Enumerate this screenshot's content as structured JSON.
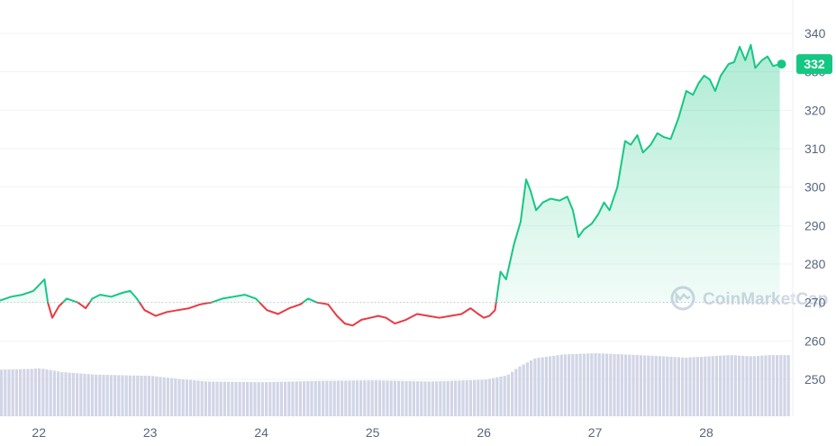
{
  "chart_data": {
    "type": "line",
    "x_ticks": [
      "22",
      "23",
      "24",
      "25",
      "26",
      "27",
      "28"
    ],
    "y_ticks": [
      250,
      260,
      270,
      280,
      290,
      300,
      310,
      320,
      330,
      340
    ],
    "ylim": [
      244,
      344
    ],
    "xlim": [
      21.65,
      28.72
    ],
    "baseline": 270,
    "current_price": "332",
    "watermark": "CoinMarketCap",
    "colors": {
      "up": "#16c784",
      "down": "#ea3943",
      "volume": "#d1d5e6",
      "grid": "#f2f3f5",
      "badge": "#16c784"
    },
    "series": [
      {
        "values": [
          [
            21.65,
            270.5
          ],
          [
            21.75,
            271.5
          ],
          [
            21.85,
            272.0
          ],
          [
            21.95,
            273.0
          ],
          [
            22.05,
            276.0
          ],
          [
            22.08,
            270.0
          ],
          [
            22.12,
            266.0
          ],
          [
            22.18,
            269.0
          ],
          [
            22.25,
            271.0
          ],
          [
            22.35,
            270.0
          ],
          [
            22.42,
            268.5
          ],
          [
            22.48,
            271.0
          ],
          [
            22.55,
            272.0
          ],
          [
            22.65,
            271.5
          ],
          [
            22.75,
            272.5
          ],
          [
            22.82,
            273.0
          ],
          [
            22.88,
            271.0
          ],
          [
            22.95,
            268.0
          ],
          [
            23.05,
            266.5
          ],
          [
            23.15,
            267.5
          ],
          [
            23.25,
            268.0
          ],
          [
            23.35,
            268.5
          ],
          [
            23.45,
            269.5
          ],
          [
            23.55,
            270.0
          ],
          [
            23.65,
            271.0
          ],
          [
            23.75,
            271.5
          ],
          [
            23.85,
            272.0
          ],
          [
            23.95,
            271.0
          ],
          [
            24.05,
            268.0
          ],
          [
            24.15,
            267.0
          ],
          [
            24.25,
            268.5
          ],
          [
            24.35,
            269.5
          ],
          [
            24.42,
            271.0
          ],
          [
            24.5,
            270.0
          ],
          [
            24.6,
            269.5
          ],
          [
            24.68,
            266.5
          ],
          [
            24.75,
            264.5
          ],
          [
            24.82,
            264.0
          ],
          [
            24.9,
            265.5
          ],
          [
            24.98,
            266.0
          ],
          [
            25.05,
            266.5
          ],
          [
            25.12,
            266.0
          ],
          [
            25.2,
            264.5
          ],
          [
            25.3,
            265.5
          ],
          [
            25.4,
            267.0
          ],
          [
            25.5,
            266.5
          ],
          [
            25.6,
            266.0
          ],
          [
            25.7,
            266.5
          ],
          [
            25.8,
            267.0
          ],
          [
            25.88,
            268.5
          ],
          [
            25.95,
            267.0
          ],
          [
            26.0,
            266.0
          ],
          [
            26.05,
            266.5
          ],
          [
            26.1,
            268.0
          ],
          [
            26.15,
            278.0
          ],
          [
            26.2,
            276.0
          ],
          [
            26.27,
            285.0
          ],
          [
            26.33,
            291.0
          ],
          [
            26.38,
            302.0
          ],
          [
            26.42,
            299.0
          ],
          [
            26.47,
            294.0
          ],
          [
            26.53,
            296.0
          ],
          [
            26.6,
            297.0
          ],
          [
            26.68,
            296.5
          ],
          [
            26.75,
            297.5
          ],
          [
            26.8,
            294.0
          ],
          [
            26.85,
            287.0
          ],
          [
            26.9,
            289.0
          ],
          [
            26.97,
            290.5
          ],
          [
            27.03,
            293.0
          ],
          [
            27.08,
            296.0
          ],
          [
            27.13,
            294.0
          ],
          [
            27.2,
            300.0
          ],
          [
            27.27,
            312.0
          ],
          [
            27.32,
            311.0
          ],
          [
            27.38,
            313.5
          ],
          [
            27.43,
            309.0
          ],
          [
            27.5,
            311.0
          ],
          [
            27.56,
            314.0
          ],
          [
            27.62,
            313.0
          ],
          [
            27.68,
            312.5
          ],
          [
            27.75,
            318.0
          ],
          [
            27.82,
            325.0
          ],
          [
            27.88,
            324.0
          ],
          [
            27.93,
            327.0
          ],
          [
            27.98,
            329.0
          ],
          [
            28.03,
            328.0
          ],
          [
            28.08,
            325.0
          ],
          [
            28.13,
            329.0
          ],
          [
            28.2,
            332.0
          ],
          [
            28.25,
            332.5
          ],
          [
            28.3,
            336.5
          ],
          [
            28.35,
            333.0
          ],
          [
            28.4,
            337.0
          ],
          [
            28.44,
            331.0
          ],
          [
            28.5,
            333.0
          ],
          [
            28.55,
            334.0
          ],
          [
            28.6,
            331.5
          ],
          [
            28.66,
            332.0
          ]
        ]
      }
    ],
    "volume": {
      "values": [
        [
          21.65,
          0.74
        ],
        [
          21.9,
          0.75
        ],
        [
          22.0,
          0.76
        ],
        [
          22.2,
          0.7
        ],
        [
          22.5,
          0.66
        ],
        [
          23.0,
          0.64
        ],
        [
          23.2,
          0.6
        ],
        [
          23.5,
          0.55
        ],
        [
          24.0,
          0.54
        ],
        [
          24.5,
          0.56
        ],
        [
          25.0,
          0.57
        ],
        [
          25.5,
          0.55
        ],
        [
          26.0,
          0.58
        ],
        [
          26.2,
          0.65
        ],
        [
          26.3,
          0.78
        ],
        [
          26.45,
          0.92
        ],
        [
          26.7,
          0.98
        ],
        [
          27.0,
          1.0
        ],
        [
          27.5,
          0.96
        ],
        [
          27.8,
          0.93
        ],
        [
          28.0,
          0.95
        ],
        [
          28.2,
          0.97
        ],
        [
          28.4,
          0.95
        ],
        [
          28.55,
          0.97
        ],
        [
          28.68,
          0.97
        ]
      ],
      "max_volume_ratio": 1
    }
  }
}
